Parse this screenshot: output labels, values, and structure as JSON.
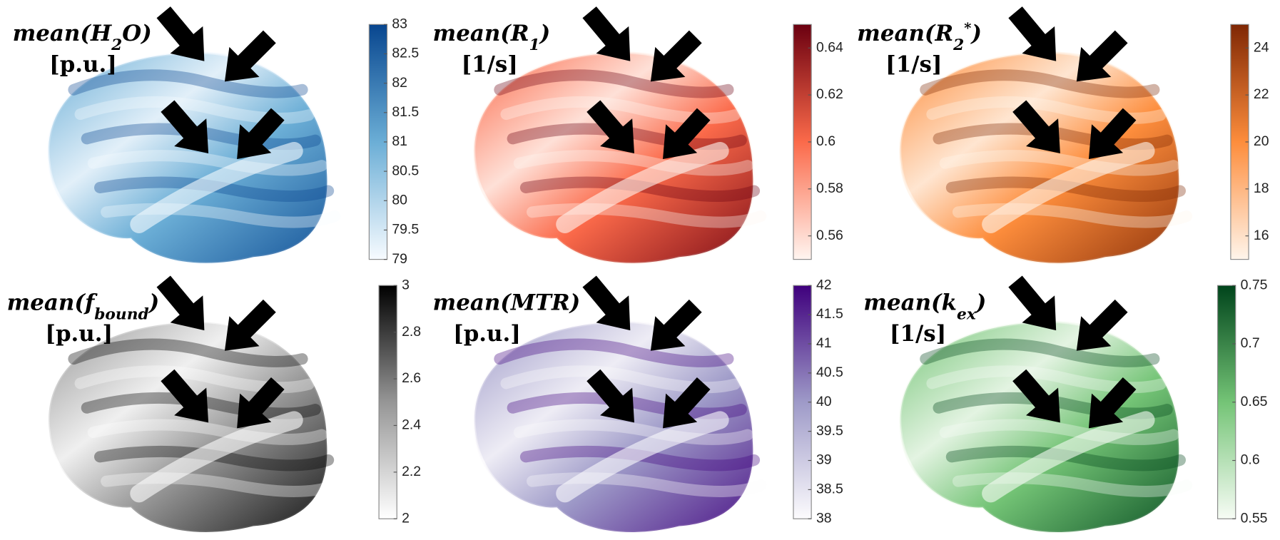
{
  "panels": [
    {
      "title": [
        {
          "text": "mean(H"
        },
        {
          "text": "2",
          "sub": true
        },
        {
          "text": "O)"
        }
      ],
      "units": "[p.u.]",
      "colorbar": {
        "lim": [
          79,
          83
        ],
        "ticks": [
          79,
          79.5,
          80,
          80.5,
          81,
          81.5,
          82,
          82.5,
          83
        ],
        "colormap": [
          "#f7fbff",
          "#6baed6",
          "#08468f"
        ]
      }
    },
    {
      "title": [
        {
          "text": "mean(R"
        },
        {
          "text": "1",
          "sub": true
        },
        {
          "text": ")"
        }
      ],
      "units": "[1/s]",
      "colorbar": {
        "lim": [
          0.55,
          0.65
        ],
        "ticks": [
          0.56,
          0.58,
          0.6,
          0.62,
          0.64
        ],
        "colormap": [
          "#fff5f0",
          "#fb6a4a",
          "#6b0010"
        ]
      }
    },
    {
      "title": [
        {
          "text": "mean(R"
        },
        {
          "text": "2",
          "sub": true
        },
        {
          "text": "*",
          "sup": true
        },
        {
          "text": ")"
        }
      ],
      "units": "[1/s]",
      "colorbar": {
        "lim": [
          15,
          25
        ],
        "ticks": [
          16,
          18,
          20,
          22,
          24
        ],
        "colormap": [
          "#fff5eb",
          "#fd8d3c",
          "#7f2704"
        ]
      }
    },
    {
      "title": [
        {
          "text": "mean(f"
        },
        {
          "text": "bound",
          "sub": true
        },
        {
          "text": ")"
        }
      ],
      "units": "[p.u.]",
      "colorbar": {
        "lim": [
          2,
          3
        ],
        "ticks": [
          2,
          2.2,
          2.4,
          2.6,
          2.8,
          3
        ],
        "colormap": [
          "#ffffff",
          "#969696",
          "#000000"
        ]
      }
    },
    {
      "title": [
        {
          "text": "mean(MTR)"
        }
      ],
      "units": "[p.u.]",
      "colorbar": {
        "lim": [
          38,
          42
        ],
        "ticks": [
          38,
          38.5,
          39,
          39.5,
          40,
          40.5,
          41,
          41.5,
          42
        ],
        "colormap": [
          "#fcfbfd",
          "#9e9ac8",
          "#3f007d"
        ]
      }
    },
    {
      "title": [
        {
          "text": "mean(k"
        },
        {
          "text": "ex",
          "sub": true
        },
        {
          "text": ")"
        }
      ],
      "units": "[1/s]",
      "colorbar": {
        "lim": [
          0.55,
          0.75
        ],
        "ticks": [
          0.55,
          0.6,
          0.65,
          0.7,
          0.75
        ],
        "colormap": [
          "#f7fcf5",
          "#74c476",
          "#00441b"
        ]
      }
    }
  ]
}
